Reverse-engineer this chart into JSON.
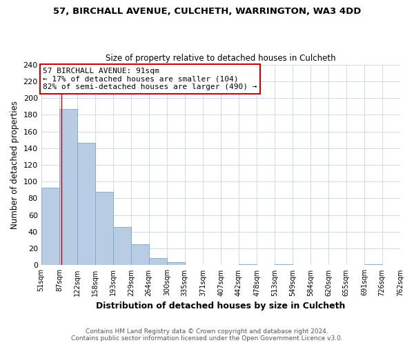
{
  "title": "57, BIRCHALL AVENUE, CULCHETH, WARRINGTON, WA3 4DD",
  "subtitle": "Size of property relative to detached houses in Culcheth",
  "xlabel": "Distribution of detached houses by size in Culcheth",
  "ylabel": "Number of detached properties",
  "bar_edges": [
    51,
    87,
    122,
    158,
    193,
    229,
    264,
    300,
    335,
    371,
    407,
    442,
    478,
    513,
    549,
    584,
    620,
    655,
    691,
    726,
    762
  ],
  "bar_heights": [
    93,
    187,
    146,
    88,
    46,
    25,
    9,
    4,
    0,
    0,
    0,
    1,
    0,
    1,
    0,
    0,
    0,
    0,
    1,
    0
  ],
  "bar_color": "#b8cce4",
  "bar_edge_color": "#7da6c8",
  "property_line_x": 91,
  "property_line_color": "#cc0000",
  "annotation_line1": "57 BIRCHALL AVENUE: 91sqm",
  "annotation_line2": "← 17% of detached houses are smaller (104)",
  "annotation_line3": "82% of semi-detached houses are larger (490) →",
  "annotation_box_color": "#ffffff",
  "annotation_box_edge_color": "#cc0000",
  "xlim": [
    51,
    762
  ],
  "ylim": [
    0,
    240
  ],
  "yticks": [
    0,
    20,
    40,
    60,
    80,
    100,
    120,
    140,
    160,
    180,
    200,
    220,
    240
  ],
  "tick_labels": [
    "51sqm",
    "87sqm",
    "122sqm",
    "158sqm",
    "193sqm",
    "229sqm",
    "264sqm",
    "300sqm",
    "335sqm",
    "371sqm",
    "407sqm",
    "442sqm",
    "478sqm",
    "513sqm",
    "549sqm",
    "584sqm",
    "620sqm",
    "655sqm",
    "691sqm",
    "726sqm",
    "762sqm"
  ],
  "footer_line1": "Contains HM Land Registry data © Crown copyright and database right 2024.",
  "footer_line2": "Contains public sector information licensed under the Open Government Licence v3.0.",
  "background_color": "#ffffff",
  "grid_color": "#cdd8ea",
  "title_fontsize": 9.5,
  "subtitle_fontsize": 8.5,
  "ylabel_fontsize": 8.5,
  "xlabel_fontsize": 9,
  "ytick_fontsize": 8,
  "xtick_fontsize": 7,
  "annotation_fontsize": 8,
  "footer_fontsize": 6.5
}
